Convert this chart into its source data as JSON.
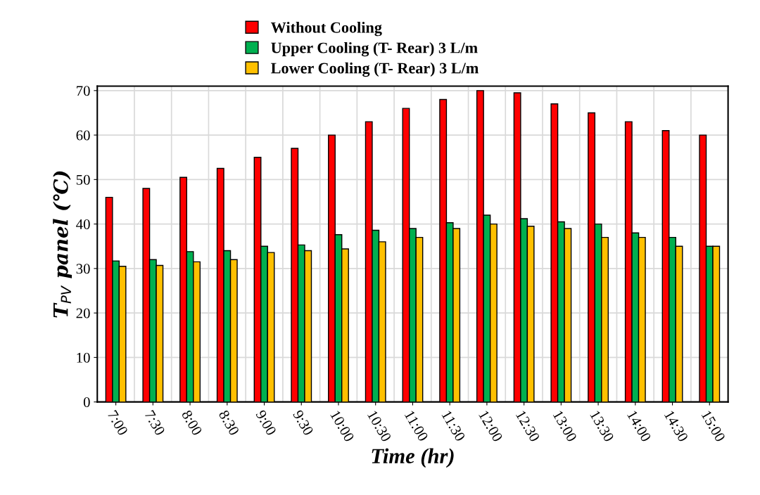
{
  "chart_data": {
    "type": "bar",
    "xlabel": "Time (hr)",
    "ylabel": "T$_{PV}$ panel (℃)",
    "categories": [
      "7:00",
      "7:30",
      "8:00",
      "8:30",
      "9:00",
      "9:30",
      "10:00",
      "10:30",
      "11:00",
      "11:30",
      "12:00",
      "12:30",
      "13:00",
      "13:30",
      "14:00",
      "14:30",
      "15:00"
    ],
    "series": [
      {
        "name": "Without Cooling",
        "color": "#ff0000",
        "values": [
          46,
          48,
          50.5,
          52.5,
          55,
          57,
          60,
          63,
          66,
          68,
          70,
          69.5,
          67,
          65,
          63,
          61,
          60
        ]
      },
      {
        "name": "Upper Cooling (T- Rear) 3 L/m",
        "color": "#00b050",
        "values": [
          31.7,
          32,
          33.8,
          34,
          35,
          35.3,
          37.6,
          38.6,
          39,
          40.3,
          42,
          41.2,
          40.5,
          40,
          38,
          37,
          35
        ]
      },
      {
        "name": "Lower Cooling (T- Rear) 3 L/m",
        "color": "#ffc000",
        "values": [
          30.5,
          30.7,
          31.5,
          32,
          33.6,
          34,
          34.4,
          36,
          37,
          39,
          40,
          39.5,
          39,
          37,
          37,
          35,
          35
        ]
      }
    ],
    "ylim": [
      0,
      71
    ],
    "yticks": [
      0,
      10,
      20,
      30,
      40,
      50,
      60,
      70
    ],
    "grid": true,
    "legend": "top"
  }
}
